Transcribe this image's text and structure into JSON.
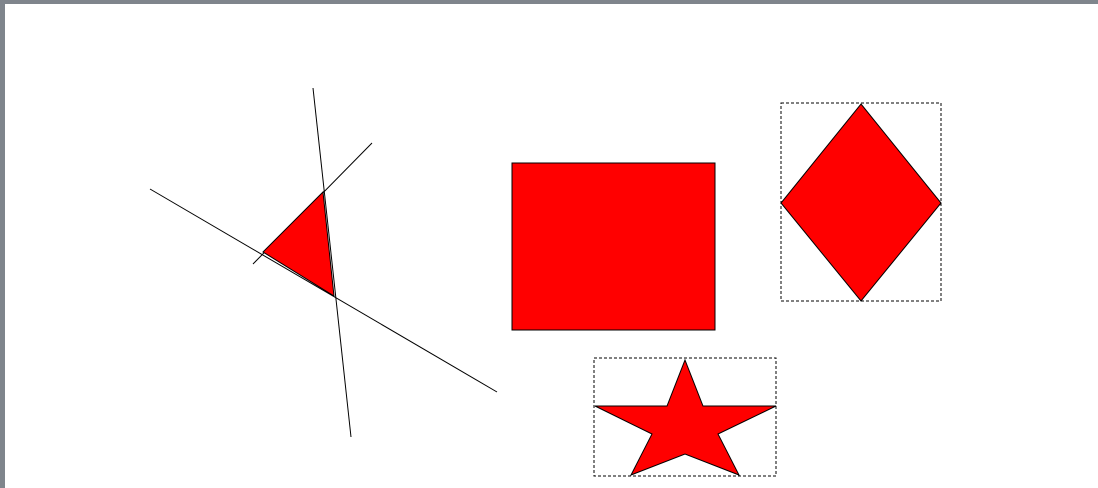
{
  "window": {
    "frame_color": "#7f858c",
    "background_color": "#ffffff"
  },
  "shapes": {
    "fill_color": "#ff0000",
    "stroke_color": "#000000",
    "selection_color": "#000000",
    "items": [
      {
        "type": "triangle",
        "name": "triangle-shape",
        "selected": false
      },
      {
        "type": "rectangle",
        "name": "rectangle-shape",
        "selected": false
      },
      {
        "type": "diamond",
        "name": "diamond-shape",
        "selected": true
      },
      {
        "type": "star",
        "name": "star-shape",
        "selected": true
      }
    ],
    "construction_lines": 3
  }
}
